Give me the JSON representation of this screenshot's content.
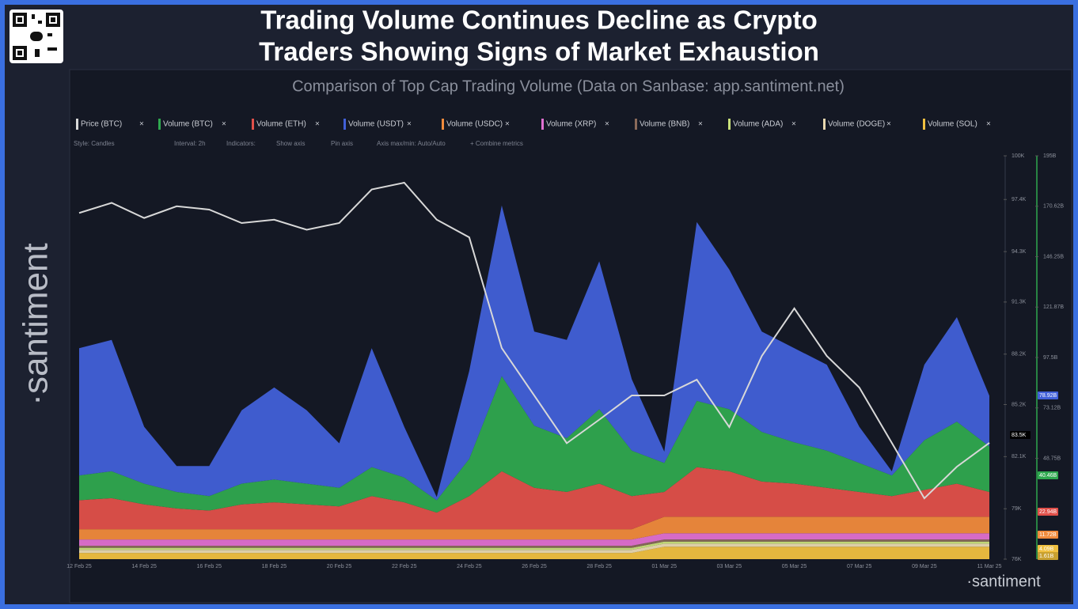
{
  "chart_data": {
    "type": "stacked_area",
    "title": "Trading Volume Continues Decline as Crypto",
    "title_line2": "Traders Showing Signs of Market Exhaustion",
    "subtitle": "Comparison of Top Cap Trading Volume (Data on Sanbase: app.santiment.net)",
    "brand": "·santiment",
    "controls": [
      "Style: Candles",
      "Interval: 2h",
      "Indicators:",
      "Show axis",
      "Pin axis",
      "Axis max/min: Auto/Auto",
      "+ Combine metrics"
    ],
    "categories": [
      "12 Feb 25",
      null,
      "14 Feb 25",
      null,
      "16 Feb 25",
      null,
      "18 Feb 25",
      null,
      "20 Feb 25",
      null,
      "22 Feb 25",
      null,
      "24 Feb 25",
      null,
      "26 Feb 25",
      null,
      "28 Feb 25",
      null,
      "01 Mar 25",
      null,
      "03 Mar 25",
      null,
      "05 Mar 25",
      null,
      "07 Mar 25",
      null,
      "09 Mar 25",
      null,
      "11 Mar 25"
    ],
    "series": [
      {
        "name": "Price (BTC)",
        "color": "#d8d8d8",
        "axis": "y",
        "values": [
          96600,
          97200,
          96300,
          97000,
          96800,
          96000,
          96200,
          95600,
          96000,
          98000,
          98400,
          96200,
          95150,
          88560,
          85740,
          82900,
          84300,
          85740,
          85740,
          86680,
          83860,
          88090,
          90920,
          88090,
          86210,
          82920,
          79620,
          81500,
          82920
        ]
      },
      {
        "name": "Volume (BTC)",
        "color": "#2fa84f",
        "axis": "y2",
        "values": [
          12,
          13,
          10,
          8,
          7,
          10,
          11,
          10,
          9,
          14,
          12,
          6,
          18,
          46,
          30,
          26,
          36,
          22,
          14,
          32,
          30,
          24,
          20,
          18,
          14,
          10,
          24,
          30,
          22
        ]
      },
      {
        "name": "Volume (ETH)",
        "color": "#e0504a",
        "axis": "y2",
        "values": [
          14,
          15,
          12,
          10,
          9,
          12,
          13,
          12,
          11,
          16,
          13,
          8,
          16,
          28,
          20,
          18,
          22,
          16,
          12,
          24,
          22,
          17,
          16,
          14,
          12,
          10,
          13,
          16,
          12
        ]
      },
      {
        "name": "Volume (USDT)",
        "color": "#4160d8",
        "axis": "y2",
        "values": [
          61.5,
          63.5,
          27.5,
          12.5,
          14.5,
          35.5,
          44.5,
          35.5,
          21.5,
          57.5,
          24.5,
          1.5,
          42.5,
          82.5,
          45.5,
          47.5,
          71.5,
          34.5,
          5.5,
          86.5,
          67.5,
          48.5,
          45.5,
          41.5,
          17.5,
          2,
          36.5,
          50.5,
          24.5
        ]
      },
      {
        "name": "Volume (USDC)",
        "color": "#f08a3c",
        "axis": "y2",
        "values": [
          5,
          5,
          5,
          5,
          5,
          5,
          5,
          5,
          5,
          5,
          5,
          5,
          5,
          5,
          5,
          5,
          5,
          5,
          8,
          8,
          8,
          8,
          8,
          8,
          8,
          8,
          8,
          8,
          8
        ]
      },
      {
        "name": "Volume (XRP)",
        "color": "#e070d0",
        "axis": "y2",
        "values": [
          3,
          3,
          3,
          3,
          3,
          3,
          3,
          3,
          3,
          3,
          3,
          3,
          3,
          3,
          3,
          3,
          3,
          3,
          3,
          3,
          3,
          3,
          3,
          3,
          3,
          3,
          3,
          3,
          3
        ]
      },
      {
        "name": "Volume (BNB)",
        "color": "#8a6a5a",
        "axis": "y2",
        "values": [
          1,
          1,
          1,
          1,
          1,
          1,
          1,
          1,
          1,
          1,
          1,
          1,
          1,
          1,
          1,
          1,
          1,
          1,
          1,
          1,
          1,
          1,
          1,
          1,
          1,
          1,
          1,
          1,
          1
        ]
      },
      {
        "name": "Volume (ADA)",
        "color": "#c8e07a",
        "axis": "y2",
        "values": [
          1,
          1,
          1,
          1,
          1,
          1,
          1,
          1,
          1,
          1,
          1,
          1,
          1,
          1,
          1,
          1,
          1,
          1,
          1,
          1,
          1,
          1,
          1,
          1,
          1,
          1,
          1,
          1,
          1
        ]
      },
      {
        "name": "Volume (DOGE)",
        "color": "#e8d8b0",
        "axis": "y2",
        "values": [
          1.5,
          1.5,
          1.5,
          1.5,
          1.5,
          1.5,
          1.5,
          1.5,
          1.5,
          1.5,
          1.5,
          1.5,
          1.5,
          1.5,
          1.5,
          1.5,
          1.5,
          1.5,
          1.5,
          1.5,
          1.5,
          1.5,
          1.5,
          1.5,
          1.5,
          1.5,
          1.5,
          1.5,
          1.5
        ]
      },
      {
        "name": "Volume (SOL)",
        "color": "#f0c040",
        "axis": "y2",
        "values": [
          3,
          3,
          3,
          3,
          3,
          3,
          3,
          3,
          3,
          3,
          3,
          3,
          3,
          3,
          3,
          3,
          3,
          3,
          6,
          6,
          6,
          6,
          6,
          6,
          6,
          6,
          6,
          6,
          6
        ]
      }
    ],
    "ylim": [
      76000,
      100000
    ],
    "yticks": [
      {
        "value": 76000,
        "label": "76K"
      },
      {
        "value": 79000,
        "label": "79K"
      },
      {
        "value": 82100,
        "label": "82.1K"
      },
      {
        "value": 85200,
        "label": "85.2K"
      },
      {
        "value": 88200,
        "label": "88.2K"
      },
      {
        "value": 91300,
        "label": "91.3K"
      },
      {
        "value": 94300,
        "label": "94.3K"
      },
      {
        "value": 97400,
        "label": "97.4K"
      },
      {
        "value": 100000,
        "label": "100K"
      }
    ],
    "y2lim": [
      0,
      195
    ],
    "y2ticks": [
      {
        "value": 48.75,
        "label": "48.75B"
      },
      {
        "value": 73.12,
        "label": "73.12B"
      },
      {
        "value": 97.5,
        "label": "97.5B"
      },
      {
        "value": 121.87,
        "label": "121.87B"
      },
      {
        "value": 146.25,
        "label": "146.25B"
      },
      {
        "value": 170.62,
        "label": "170.62B"
      },
      {
        "value": 195,
        "label": "195B"
      }
    ],
    "annotations": [
      "83.5K",
      "78.92B",
      "40.46B",
      "22.94B",
      "11.72B",
      "4.09B",
      "1.61B"
    ]
  }
}
